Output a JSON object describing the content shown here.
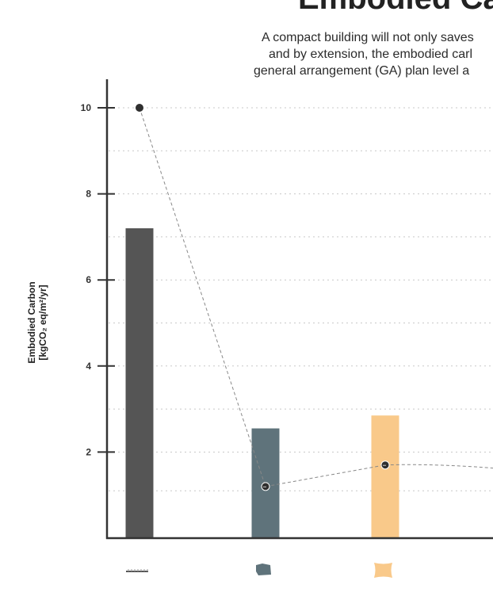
{
  "chart_data": {
    "type": "bar",
    "title": "Embodied Ca",
    "subtitle_lines": [
      "A compact building will not only saves",
      "and by extension, the embodied carl",
      "general arrangement (GA) plan level a"
    ],
    "ylabel_line1": "Embodied Carbon",
    "ylabel_line2": "[kgCO₂ eq/m²/yr]",
    "ylim": [
      0,
      10.8
    ],
    "yticks": [
      2,
      4,
      6,
      8,
      10
    ],
    "yticks_minor": [
      1.1,
      3.0,
      5.0,
      7.0,
      9.0
    ],
    "grid": true,
    "categories": [
      "linear",
      "compact",
      "square"
    ],
    "category_icons": [
      "linear-shape-icon",
      "compact-shape-icon",
      "square-shape-icon"
    ],
    "bar_colors": [
      "#555555",
      "#5f737b",
      "#f9c98a"
    ],
    "values": [
      7.2,
      2.55,
      2.85
    ],
    "line_series": {
      "values": [
        10.0,
        1.2,
        1.7
      ],
      "continuation_value": 1.6,
      "color": "#888888"
    }
  }
}
